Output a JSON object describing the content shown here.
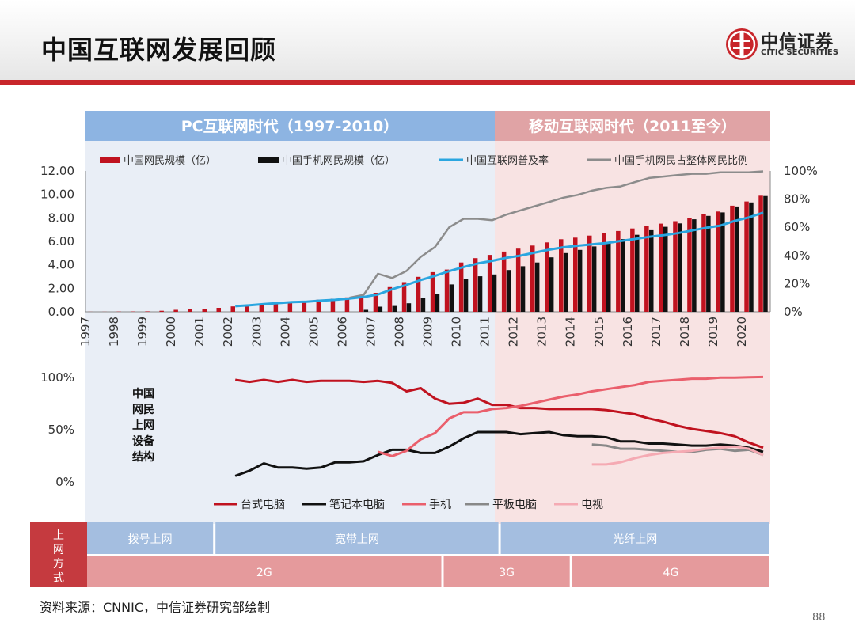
{
  "page": {
    "title": "中国互联网发展回顾",
    "logo_name": "中信证券",
    "logo_en": "CITIC SECURITIES",
    "source": "资料来源：CNNIC，中信证券研究部绘制",
    "page_number": "88"
  },
  "colors": {
    "accent_red": "#c8262b",
    "pc_band": "#8db4e2",
    "mobile_band": "#e0a3a5",
    "internet_users": "#c0121f",
    "mobile_users": "#111111",
    "penetration": "#2aa6e0",
    "mobile_share": "#8c8c8c",
    "desktop": "#c0121f",
    "laptop": "#111111",
    "phone": "#ea5f6c",
    "tablet": "#888888",
    "tv": "#f5aab3"
  },
  "eras": {
    "pc": "PC互联网时代（1997-2010）",
    "mobile": "移动互联网时代（2011至今）"
  },
  "chart_data": [
    {
      "type": "bar",
      "categories": [
        "1997",
        "1998",
        "1999",
        "2000",
        "2001",
        "2002",
        "2003",
        "2004",
        "2005",
        "2006",
        "2007",
        "2008",
        "2009",
        "2010",
        "2011",
        "2012",
        "2013",
        "2014",
        "2015",
        "2016",
        "2017",
        "2018",
        "2019",
        "2020"
      ],
      "legend": [
        "中国网民规模（亿）",
        "中国手机网民规模（亿）",
        "中国互联网普及率",
        "中国手机网民占整体网民比例"
      ],
      "legend_position": "top",
      "y_left": {
        "ticks": [
          "0.00",
          "2.00",
          "4.00",
          "6.00",
          "8.00",
          "10.00",
          "12.00"
        ],
        "range": [
          0,
          12
        ]
      },
      "y_right": {
        "ticks": [
          "0%",
          "20%",
          "40%",
          "60%",
          "80%",
          "100%"
        ],
        "range": [
          0,
          100
        ]
      },
      "series": [
        {
          "name": "中国网民规模（亿）",
          "kind": "bar",
          "axis": "left",
          "x": [
            1997.0,
            1997.5,
            1998.0,
            1998.5,
            1999.0,
            1999.5,
            2000.0,
            2000.5,
            2001.0,
            2001.5,
            2002.0,
            2002.5,
            2003.0,
            2003.5,
            2004.0,
            2004.5,
            2005.0,
            2005.5,
            2006.0,
            2006.5,
            2007.0,
            2007.5,
            2008.0,
            2008.5,
            2009.0,
            2009.5,
            2010.0,
            2010.5,
            2011.0,
            2011.5,
            2012.0,
            2012.5,
            2013.0,
            2013.5,
            2014.0,
            2014.5,
            2015.0,
            2015.5,
            2016.0,
            2016.5,
            2017.0,
            2017.5,
            2018.0,
            2018.5,
            2019.0,
            2019.5,
            2020.0,
            2020.5
          ],
          "values": [
            0.01,
            0.01,
            0.02,
            0.03,
            0.04,
            0.09,
            0.17,
            0.23,
            0.27,
            0.34,
            0.46,
            0.6,
            0.68,
            0.78,
            0.87,
            0.94,
            1.03,
            1.11,
            1.23,
            1.37,
            1.62,
            2.1,
            2.53,
            2.98,
            3.38,
            3.6,
            4.2,
            4.57,
            4.85,
            5.13,
            5.38,
            5.64,
            5.91,
            6.18,
            6.32,
            6.49,
            6.68,
            6.88,
            7.1,
            7.31,
            7.51,
            7.72,
            8.02,
            8.29,
            8.54,
            9.04,
            9.4,
            9.89
          ]
        },
        {
          "name": "中国手机网民规模（亿）",
          "kind": "bar",
          "axis": "left",
          "x": [
            2006.5,
            2007.0,
            2007.5,
            2008.0,
            2008.5,
            2009.0,
            2009.5,
            2010.0,
            2010.5,
            2011.0,
            2011.5,
            2012.0,
            2012.5,
            2013.0,
            2013.5,
            2014.0,
            2014.5,
            2015.0,
            2015.5,
            2016.0,
            2016.5,
            2017.0,
            2017.5,
            2018.0,
            2018.5,
            2019.0,
            2019.5,
            2020.0,
            2020.5
          ],
          "values": [
            0.17,
            0.44,
            0.5,
            0.73,
            1.17,
            1.55,
            2.33,
            2.77,
            3.03,
            3.18,
            3.56,
            3.88,
            4.2,
            4.64,
            5.0,
            5.27,
            5.57,
            5.94,
            6.2,
            6.56,
            6.95,
            7.24,
            7.53,
            7.88,
            8.17,
            8.47,
            8.97,
            9.32,
            9.86
          ]
        },
        {
          "name": "中国互联网普及率",
          "kind": "line",
          "axis": "right",
          "x": [
            2002.0,
            2002.5,
            2003.0,
            2003.5,
            2004.0,
            2004.5,
            2005.0,
            2005.5,
            2006.0,
            2006.5,
            2007.0,
            2007.5,
            2008.0,
            2008.5,
            2009.0,
            2009.5,
            2010.0,
            2010.5,
            2011.0,
            2011.5,
            2012.0,
            2012.5,
            2013.0,
            2013.5,
            2014.0,
            2014.5,
            2015.0,
            2015.5,
            2016.0,
            2016.5,
            2017.0,
            2017.5,
            2018.0,
            2018.5,
            2019.0,
            2019.5,
            2020.0,
            2020.5
          ],
          "values": [
            4.0,
            4.6,
            5.5,
            6.2,
            6.9,
            7.2,
            7.9,
            8.5,
            9.4,
            10.5,
            12.3,
            16.0,
            19.1,
            22.6,
            25.5,
            28.9,
            31.8,
            34.3,
            36.2,
            38.3,
            39.9,
            42.1,
            44.1,
            45.8,
            46.9,
            47.9,
            48.8,
            50.3,
            51.7,
            53.2,
            54.3,
            55.8,
            57.7,
            59.6,
            61.2,
            64.5,
            67.0,
            70.4
          ]
        },
        {
          "name": "中国手机网民占整体网民比例",
          "kind": "line",
          "axis": "right",
          "x": [
            2006.0,
            2006.5,
            2007.0,
            2007.5,
            2008.0,
            2008.5,
            2009.0,
            2009.5,
            2010.0,
            2010.5,
            2011.0,
            2011.5,
            2012.0,
            2012.5,
            2013.0,
            2013.5,
            2014.0,
            2014.5,
            2015.0,
            2015.5,
            2016.0,
            2016.5,
            2017.0,
            2017.5,
            2018.0,
            2018.5,
            2019.0,
            2019.5,
            2020.0,
            2020.5
          ],
          "values": [
            10,
            12,
            27,
            24,
            29,
            39,
            46,
            60,
            66,
            66,
            65,
            69,
            72,
            75,
            78,
            81,
            83,
            86,
            88,
            89,
            92,
            95,
            96,
            97,
            98,
            98,
            99,
            99,
            99,
            99.7
          ]
        }
      ]
    },
    {
      "type": "line",
      "title": "中国网民上网设备结构",
      "legend": [
        "台式电脑",
        "笔记本电脑",
        "手机",
        "平板电脑",
        "电视"
      ],
      "legend_position": "bottom",
      "y": {
        "ticks": [
          "0%",
          "50%",
          "100%"
        ],
        "range": [
          0,
          100
        ]
      },
      "series": [
        {
          "name": "台式电脑",
          "x": [
            2002.0,
            2002.5,
            2003.0,
            2003.5,
            2004.0,
            2004.5,
            2005.0,
            2005.5,
            2006.0,
            2006.5,
            2007.0,
            2007.5,
            2008.0,
            2008.5,
            2009.0,
            2009.5,
            2010.0,
            2010.5,
            2011.0,
            2011.5,
            2012.0,
            2012.5,
            2013.0,
            2013.5,
            2014.0,
            2014.5,
            2015.0,
            2015.5,
            2016.0,
            2016.5,
            2017.0,
            2017.5,
            2018.0,
            2018.5,
            2019.0,
            2019.5,
            2020.0,
            2020.5
          ],
          "values": [
            97,
            95,
            97,
            95,
            97,
            95,
            96,
            96,
            96,
            95,
            96,
            94,
            86,
            89,
            79,
            74,
            75,
            79,
            73,
            73,
            70,
            70,
            69,
            69,
            69,
            69,
            68,
            66,
            64,
            60,
            57,
            53,
            50,
            48,
            46,
            43,
            37,
            32
          ]
        },
        {
          "name": "笔记本电脑",
          "x": [
            2002.0,
            2002.5,
            2003.0,
            2003.5,
            2004.0,
            2004.5,
            2005.0,
            2005.5,
            2006.0,
            2006.5,
            2007.0,
            2007.5,
            2008.0,
            2008.5,
            2009.0,
            2009.5,
            2010.0,
            2010.5,
            2011.0,
            2011.5,
            2012.0,
            2012.5,
            2013.0,
            2013.5,
            2014.0,
            2014.5,
            2015.0,
            2015.5,
            2016.0,
            2016.5,
            2017.0,
            2017.5,
            2018.0,
            2018.5,
            2019.0,
            2019.5,
            2020.0,
            2020.5
          ],
          "values": [
            5,
            10,
            17,
            13,
            13,
            12,
            13,
            18,
            18,
            19,
            25,
            30,
            30,
            27,
            27,
            33,
            41,
            47,
            47,
            47,
            45,
            46,
            47,
            44,
            43,
            43,
            42,
            38,
            38,
            36,
            36,
            35,
            34,
            34,
            35,
            34,
            32,
            28
          ]
        },
        {
          "name": "手机",
          "x": [
            2007.0,
            2007.5,
            2008.0,
            2008.5,
            2009.0,
            2009.5,
            2010.0,
            2010.5,
            2011.0,
            2011.5,
            2012.0,
            2012.5,
            2013.0,
            2013.5,
            2014.0,
            2014.5,
            2015.0,
            2015.5,
            2016.0,
            2016.5,
            2017.0,
            2017.5,
            2018.0,
            2018.5,
            2019.0,
            2019.5,
            2020.0,
            2020.5
          ],
          "values": [
            28,
            24,
            29,
            40,
            46,
            60,
            66,
            66,
            69,
            70,
            72,
            75,
            78,
            81,
            83,
            86,
            88,
            90,
            92,
            95,
            96,
            97,
            98,
            98,
            99,
            99,
            99.5,
            99.7
          ]
        },
        {
          "name": "平板电脑",
          "x": [
            2014.5,
            2015.0,
            2015.5,
            2016.0,
            2016.5,
            2017.0,
            2017.5,
            2018.0,
            2018.5,
            2019.0,
            2019.5,
            2020.0,
            2020.5
          ],
          "values": [
            35,
            34,
            31,
            31,
            30,
            29,
            28,
            28,
            30,
            31,
            29,
            30,
            25
          ]
        },
        {
          "name": "电视",
          "x": [
            2014.5,
            2015.0,
            2015.5,
            2016.0,
            2016.5,
            2017.0,
            2017.5,
            2018.0,
            2018.5,
            2019.0,
            2019.5,
            2020.0,
            2020.5
          ],
          "values": [
            16,
            16,
            18,
            22,
            25,
            27,
            28,
            29,
            31,
            32,
            33,
            31,
            25
          ]
        }
      ]
    }
  ],
  "access": {
    "label": "上网方式",
    "label_chars": [
      "上",
      "网",
      "方",
      "式"
    ],
    "fixed": [
      {
        "label": "拨号上网",
        "from": 1997,
        "to": 2001.5
      },
      {
        "label": "宽带上网",
        "from": 2001.5,
        "to": 2011.5
      },
      {
        "label": "光纤上网",
        "from": 2011.5,
        "to": 2021
      }
    ],
    "mobile": [
      {
        "label": "2G",
        "from": 1997,
        "to": 2009.5
      },
      {
        "label": "3G",
        "from": 2009.5,
        "to": 2014
      },
      {
        "label": "4G",
        "from": 2014,
        "to": 2021
      }
    ]
  }
}
